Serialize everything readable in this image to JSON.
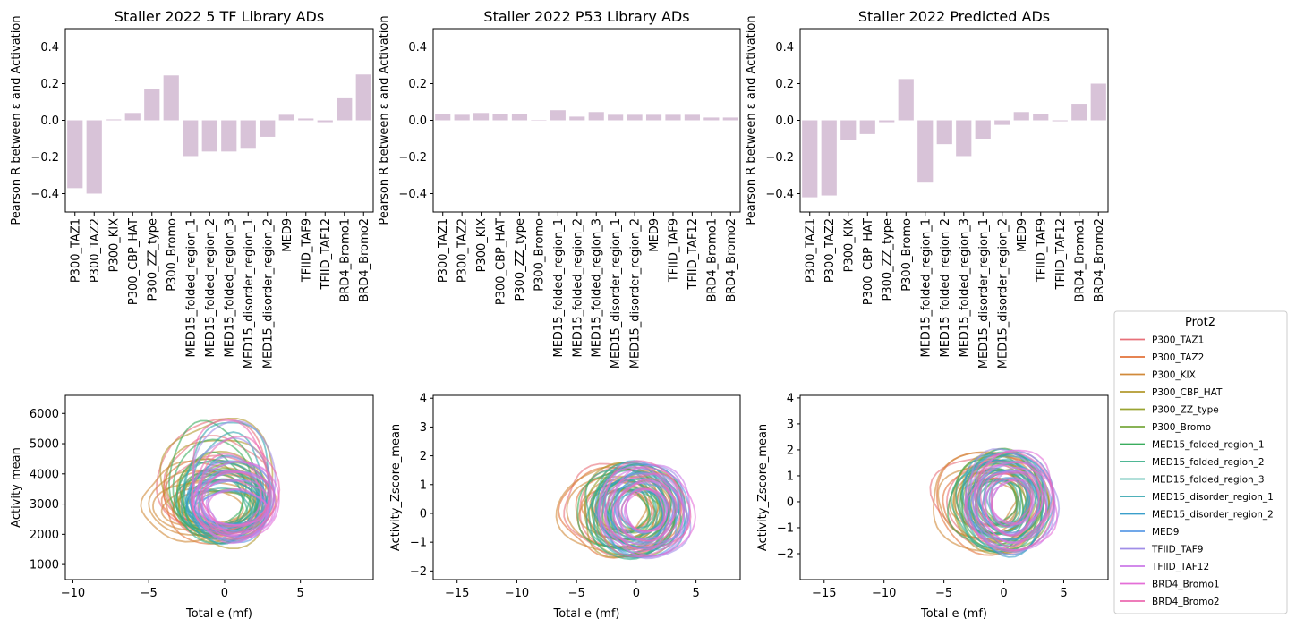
{
  "legend": {
    "title": "Prot2",
    "entries": [
      "P300_TAZ1",
      "P300_TAZ2",
      "P300_KIX",
      "P300_CBP_HAT",
      "P300_ZZ_type",
      "P300_Bromo",
      "MED15_folded_region_1",
      "MED15_folded_region_2",
      "MED15_folded_region_3",
      "MED15_disorder_region_1",
      "MED15_disorder_region_2",
      "MED9",
      "TFIID_TAF9",
      "TFIID_TAF12",
      "BRD4_Bromo1",
      "BRD4_Bromo2"
    ],
    "colors": [
      "#e8707a",
      "#e2733a",
      "#d18a3a",
      "#b29a2e",
      "#9aa432",
      "#78a83e",
      "#3aad5e",
      "#36ad86",
      "#33ab9e",
      "#36a6b1",
      "#3a9fcb",
      "#5d9be6",
      "#a08ee8",
      "#cc7ae8",
      "#e46fd8",
      "#ec6ab0"
    ]
  },
  "chart_data": [
    {
      "type": "bar",
      "title": "Staller 2022 5 TF Library ADs",
      "xlabel": "",
      "ylabel": "Pearson R between ε and Activation",
      "ylim": [
        -0.5,
        0.5
      ],
      "yticks": [
        "−0.4",
        "−0.2",
        "0.0",
        "0.2",
        "0.4"
      ],
      "bar_color": "#d8c3d8",
      "categories": [
        "P300_TAZ1",
        "P300_TAZ2",
        "P300_KIX",
        "P300_CBP_HAT",
        "P300_ZZ_type",
        "P300_Bromo",
        "MED15_folded_region_1",
        "MED15_folded_region_2",
        "MED15_folded_region_3",
        "MED15_disorder_region_1",
        "MED15_disorder_region_2",
        "MED9",
        "TFIID_TAF9",
        "TFIID_TAF12",
        "BRD4_Bromo1",
        "BRD4_Bromo2"
      ],
      "values": [
        -0.37,
        -0.4,
        0.005,
        0.04,
        0.17,
        0.245,
        -0.195,
        -0.17,
        -0.17,
        -0.155,
        -0.09,
        0.03,
        0.01,
        -0.01,
        0.12,
        0.25
      ]
    },
    {
      "type": "bar",
      "title": "Staller 2022 P53 Library ADs",
      "xlabel": "",
      "ylabel": "Pearson R between ε and Activation",
      "ylim": [
        -0.5,
        0.5
      ],
      "yticks": [
        "−0.4",
        "−0.2",
        "0.0",
        "0.2",
        "0.4"
      ],
      "bar_color": "#d8c3d8",
      "categories": [
        "P300_TAZ1",
        "P300_TAZ2",
        "P300_KIX",
        "P300_CBP_HAT",
        "P300_ZZ_type",
        "P300_Bromo",
        "MED15_folded_region_1",
        "MED15_folded_region_2",
        "MED15_folded_region_3",
        "MED15_disorder_region_1",
        "MED15_disorder_region_2",
        "MED9",
        "TFIID_TAF9",
        "TFIID_TAF12",
        "BRD4_Bromo1",
        "BRD4_Bromo2"
      ],
      "values": [
        0.035,
        0.03,
        0.04,
        0.035,
        0.035,
        0.0,
        0.055,
        0.02,
        0.045,
        0.03,
        0.03,
        0.03,
        0.03,
        0.03,
        0.015,
        0.015
      ]
    },
    {
      "type": "bar",
      "title": "Staller 2022 Predicted ADs",
      "xlabel": "",
      "ylabel": "Pearson R between ε and Activation",
      "ylim": [
        -0.5,
        0.5
      ],
      "yticks": [
        "−0.4",
        "−0.2",
        "0.0",
        "0.2",
        "0.4"
      ],
      "bar_color": "#d8c3d8",
      "categories": [
        "P300_TAZ1",
        "P300_TAZ2",
        "P300_KIX",
        "P300_CBP_HAT",
        "P300_ZZ_type",
        "P300_Bromo",
        "MED15_folded_region_1",
        "MED15_folded_region_2",
        "MED15_folded_region_3",
        "MED15_disorder_region_1",
        "MED15_disorder_region_2",
        "MED9",
        "TFIID_TAF9",
        "TFIID_TAF12",
        "BRD4_Bromo1",
        "BRD4_Bromo2"
      ],
      "values": [
        -0.42,
        -0.41,
        -0.105,
        -0.075,
        -0.01,
        0.225,
        -0.34,
        -0.13,
        -0.195,
        -0.1,
        -0.025,
        0.045,
        0.035,
        -0.005,
        0.09,
        0.2
      ]
    },
    {
      "type": "contour",
      "xlabel": "Total e (mf)",
      "ylabel": "Activity mean",
      "xlim": [
        -10.5,
        9.8
      ],
      "ylim": [
        500,
        6600
      ],
      "xticks": [
        -10,
        -5,
        0,
        5
      ],
      "yticks": [
        1000,
        2000,
        3000,
        4000,
        5000,
        6000
      ],
      "centers_x": [
        -0.5,
        -0.5,
        -1.5,
        -0.3,
        -0.3,
        0.2,
        -0.8,
        -0.5,
        -0.2,
        0.2,
        0.3,
        0.5,
        0.6,
        0.7,
        0.8,
        0.5
      ],
      "center_y": 2700
    },
    {
      "type": "contour",
      "xlabel": "Total e (mf)",
      "ylabel": "Activity_Zscore_mean",
      "xlim": [
        -17,
        8.7
      ],
      "ylim": [
        -2.3,
        4.1
      ],
      "xticks": [
        -15,
        -10,
        -5,
        0,
        5
      ],
      "yticks": [
        -2,
        -1,
        0,
        1,
        2,
        3,
        4
      ],
      "centers_x": [
        -1.0,
        -1.2,
        -1.5,
        -0.8,
        -0.5,
        0.2,
        -0.8,
        -0.5,
        -0.2,
        0.3,
        0.4,
        0.6,
        0.8,
        0.8,
        0.9,
        0.6
      ],
      "center_y": 0.1
    },
    {
      "type": "contour",
      "xlabel": "Total e (mf)",
      "ylabel": "Activity_Zscore_mean",
      "xlim": [
        -17,
        8.7
      ],
      "ylim": [
        -3.0,
        4.1
      ],
      "xticks": [
        -15,
        -10,
        -5,
        0,
        5
      ],
      "yticks": [
        -2,
        -1,
        0,
        1,
        2,
        3,
        4
      ],
      "centers_x": [
        -0.8,
        -1.0,
        -1.3,
        -0.6,
        -0.4,
        0.1,
        -0.7,
        -0.4,
        -0.2,
        0.3,
        0.4,
        0.5,
        0.7,
        0.7,
        0.8,
        0.5
      ],
      "center_y": 0.0
    }
  ]
}
